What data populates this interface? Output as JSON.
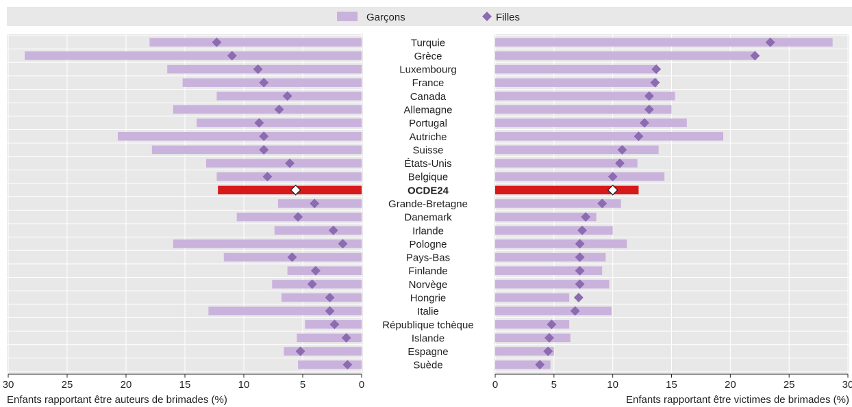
{
  "legend": {
    "boys_label": "Garçons",
    "girls_label": "Filles"
  },
  "colors": {
    "boys_bar": "#c9b3dc",
    "girls_marker": "#8c6bb1",
    "highlight": "#d7191c",
    "panel_bg": "#e8e8e8",
    "legend_bg": "#e8e8e8"
  },
  "chart_data": {
    "type": "bar",
    "categories": [
      "Turquie",
      "Grèce",
      "Luxembourg",
      "France",
      "Canada",
      "Allemagne",
      "Portugal",
      "Autriche",
      "Suisse",
      "États-Unis",
      "Belgique",
      "OCDE24",
      "Grande-Bretagne",
      "Danemark",
      "Irlande",
      "Pologne",
      "Pays-Bas",
      "Finlande",
      "Norvège",
      "Hongrie",
      "Italie",
      "République tchèque",
      "Islande",
      "Espagne",
      "Suède"
    ],
    "highlight_category": "OCDE24",
    "panels": [
      {
        "id": "bullies",
        "xlabel": "Enfants rapportant être auteurs de brimades (%)",
        "xlim": [
          0,
          30
        ],
        "reversed": true,
        "xticks": [
          30,
          25,
          20,
          15,
          10,
          5,
          0
        ],
        "series": [
          {
            "name": "Garçons",
            "style": "bar",
            "values": [
              18.0,
              28.6,
              16.5,
              15.2,
              12.3,
              16.0,
              14.0,
              20.7,
              17.8,
              13.2,
              12.3,
              12.2,
              7.1,
              10.6,
              7.4,
              16.0,
              11.7,
              6.3,
              7.6,
              6.8,
              13.0,
              4.8,
              5.5,
              6.6,
              5.4
            ]
          },
          {
            "name": "Filles",
            "style": "diamond",
            "values": [
              12.3,
              11.0,
              8.8,
              8.3,
              6.3,
              7.0,
              8.7,
              8.3,
              8.3,
              6.1,
              8.0,
              5.6,
              4.0,
              5.4,
              2.4,
              1.6,
              5.9,
              3.9,
              4.2,
              2.7,
              2.7,
              2.3,
              1.3,
              5.2,
              1.2
            ]
          }
        ]
      },
      {
        "id": "victims",
        "xlabel": "Enfants rapportant être victimes de brimades (%)",
        "xlim": [
          0,
          30
        ],
        "reversed": false,
        "xticks": [
          0,
          5,
          10,
          15,
          20,
          25,
          30
        ],
        "series": [
          {
            "name": "Garçons",
            "style": "bar",
            "values": [
              28.7,
              22.2,
              13.8,
              13.8,
              15.3,
              15.0,
              16.3,
              19.4,
              13.9,
              12.1,
              14.4,
              12.2,
              10.7,
              8.6,
              10.0,
              11.2,
              9.4,
              9.1,
              9.7,
              6.3,
              9.9,
              6.3,
              6.4,
              5.0,
              4.7
            ]
          },
          {
            "name": "Filles",
            "style": "diamond",
            "values": [
              23.4,
              22.1,
              13.7,
              13.6,
              13.1,
              13.1,
              12.7,
              12.2,
              10.8,
              10.6,
              10.0,
              10.0,
              9.1,
              7.7,
              7.4,
              7.2,
              7.2,
              7.2,
              7.2,
              7.1,
              6.8,
              4.8,
              4.6,
              4.5,
              3.8
            ]
          }
        ]
      }
    ],
    "grid": true,
    "legend_position": "top"
  }
}
